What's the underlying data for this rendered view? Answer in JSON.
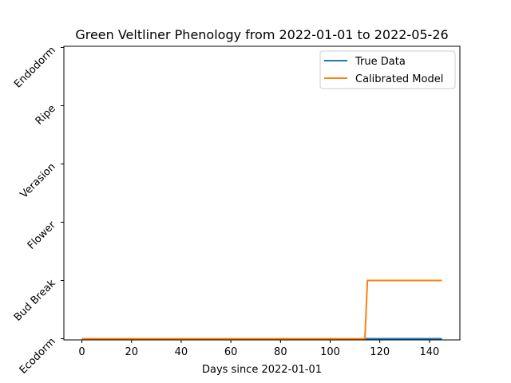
{
  "chart_data": {
    "type": "line",
    "title": "Green Veltliner Phenology from 2022-01-01 to 2022-05-26",
    "xlabel": "Days since 2022-01-01",
    "ylabel": "",
    "xlim": [
      -7.25,
      152.25
    ],
    "ylim": [
      -0.02,
      5.02
    ],
    "x_ticks": [
      0,
      20,
      40,
      60,
      80,
      100,
      120,
      140
    ],
    "x_tick_labels": [
      "0",
      "20",
      "40",
      "60",
      "80",
      "100",
      "120",
      "140"
    ],
    "y_ticks": [
      0,
      1,
      2,
      3,
      4,
      5
    ],
    "y_tick_labels": [
      "Ecodorm",
      "Bud Break",
      "Flower",
      "Verasion",
      "Ripe",
      "Endodorm"
    ],
    "grid": false,
    "legend_position": "upper right",
    "series": [
      {
        "name": "True Data",
        "color": "#1f77b4",
        "x": [
          0,
          145
        ],
        "y": [
          0,
          0
        ]
      },
      {
        "name": "Calibrated Model",
        "color": "#ff7f0e",
        "x": [
          0,
          114,
          115,
          145
        ],
        "y": [
          0,
          0,
          1,
          1
        ]
      }
    ]
  }
}
